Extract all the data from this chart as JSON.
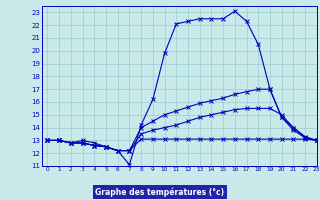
{
  "xlabel": "Graphe des températures (°c)",
  "xlim": [
    -0.5,
    23
  ],
  "ylim": [
    11,
    23.5
  ],
  "yticks": [
    11,
    12,
    13,
    14,
    15,
    16,
    17,
    18,
    19,
    20,
    21,
    22,
    23
  ],
  "xticks": [
    0,
    1,
    2,
    3,
    4,
    5,
    6,
    7,
    8,
    9,
    10,
    11,
    12,
    13,
    14,
    15,
    16,
    17,
    18,
    19,
    20,
    21,
    22,
    23
  ],
  "bg_color": "#c8eaea",
  "line_color": "#0000bb",
  "grid_color": "#99cccc",
  "xlabel_bg": "#2222aa",
  "xlabel_fg": "#ffffff",
  "lines": [
    {
      "x": [
        0,
        1,
        2,
        3,
        4,
        5,
        6,
        7,
        8,
        9,
        10,
        11,
        12,
        13,
        14,
        15,
        16,
        17,
        18,
        19,
        20,
        21,
        22,
        23
      ],
      "y": [
        13,
        13,
        12.8,
        13,
        12.8,
        12.5,
        12.2,
        11.1,
        14.2,
        16.2,
        19.8,
        22.1,
        22.3,
        22.5,
        22.5,
        22.5,
        23.1,
        22.3,
        20.5,
        17.0,
        14.8,
        14.0,
        13.2,
        13.0
      ]
    },
    {
      "x": [
        0,
        1,
        2,
        3,
        4,
        5,
        6,
        7,
        8,
        9,
        10,
        11,
        12,
        13,
        14,
        15,
        16,
        17,
        18,
        19,
        20,
        21,
        22,
        23
      ],
      "y": [
        13,
        13,
        12.8,
        12.8,
        12.6,
        12.5,
        12.2,
        12.2,
        14.0,
        14.5,
        15.0,
        15.3,
        15.6,
        15.9,
        16.1,
        16.3,
        16.6,
        16.8,
        17.0,
        17.0,
        14.8,
        13.8,
        13.2,
        13.0
      ]
    },
    {
      "x": [
        0,
        1,
        2,
        3,
        4,
        5,
        6,
        7,
        8,
        9,
        10,
        11,
        12,
        13,
        14,
        15,
        16,
        17,
        18,
        19,
        20,
        21,
        22,
        23
      ],
      "y": [
        13,
        13,
        12.8,
        12.8,
        12.6,
        12.5,
        12.2,
        12.2,
        13.5,
        13.8,
        14.0,
        14.2,
        14.5,
        14.8,
        15.0,
        15.2,
        15.4,
        15.5,
        15.5,
        15.5,
        15.0,
        14.0,
        13.3,
        13.0
      ]
    },
    {
      "x": [
        0,
        1,
        2,
        3,
        4,
        5,
        6,
        7,
        8,
        9,
        10,
        11,
        12,
        13,
        14,
        15,
        16,
        17,
        18,
        19,
        20,
        21,
        22,
        23
      ],
      "y": [
        13,
        13,
        12.8,
        12.8,
        12.6,
        12.5,
        12.2,
        12.2,
        13.1,
        13.1,
        13.1,
        13.1,
        13.1,
        13.1,
        13.1,
        13.1,
        13.1,
        13.1,
        13.1,
        13.1,
        13.1,
        13.1,
        13.1,
        13.0
      ]
    }
  ]
}
